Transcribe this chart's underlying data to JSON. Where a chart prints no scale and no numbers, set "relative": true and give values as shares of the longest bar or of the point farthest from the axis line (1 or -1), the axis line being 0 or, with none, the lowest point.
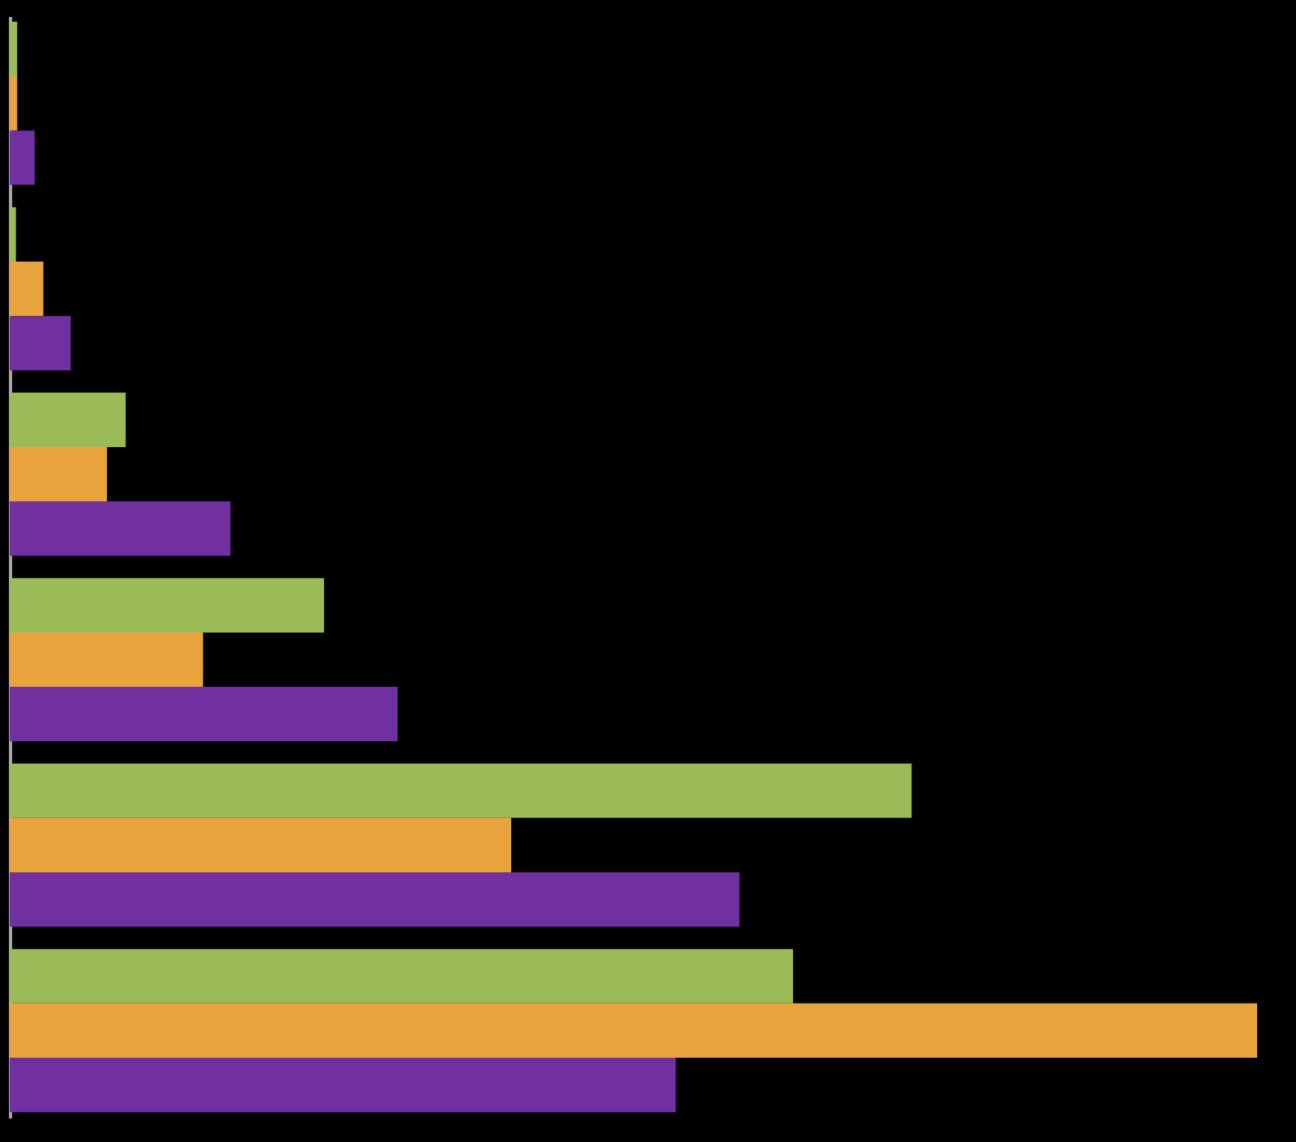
{
  "chart_data": {
    "type": "bar",
    "orientation": "horizontal",
    "relative": true,
    "tick_labels": false,
    "categories": [
      null,
      null,
      null,
      null,
      null,
      null
    ],
    "series": [
      {
        "color": "#9bbb59",
        "values": [
          0.006,
          0.005,
          0.093,
          0.252,
          0.723,
          0.628
        ]
      },
      {
        "color": "#e8a33d",
        "values": [
          0.006,
          0.027,
          0.078,
          0.155,
          0.402,
          1
        ]
      },
      {
        "color": "#7030a0",
        "values": [
          0.02,
          0.049,
          0.177,
          0.311,
          0.585,
          0.534
        ]
      }
    ]
  }
}
